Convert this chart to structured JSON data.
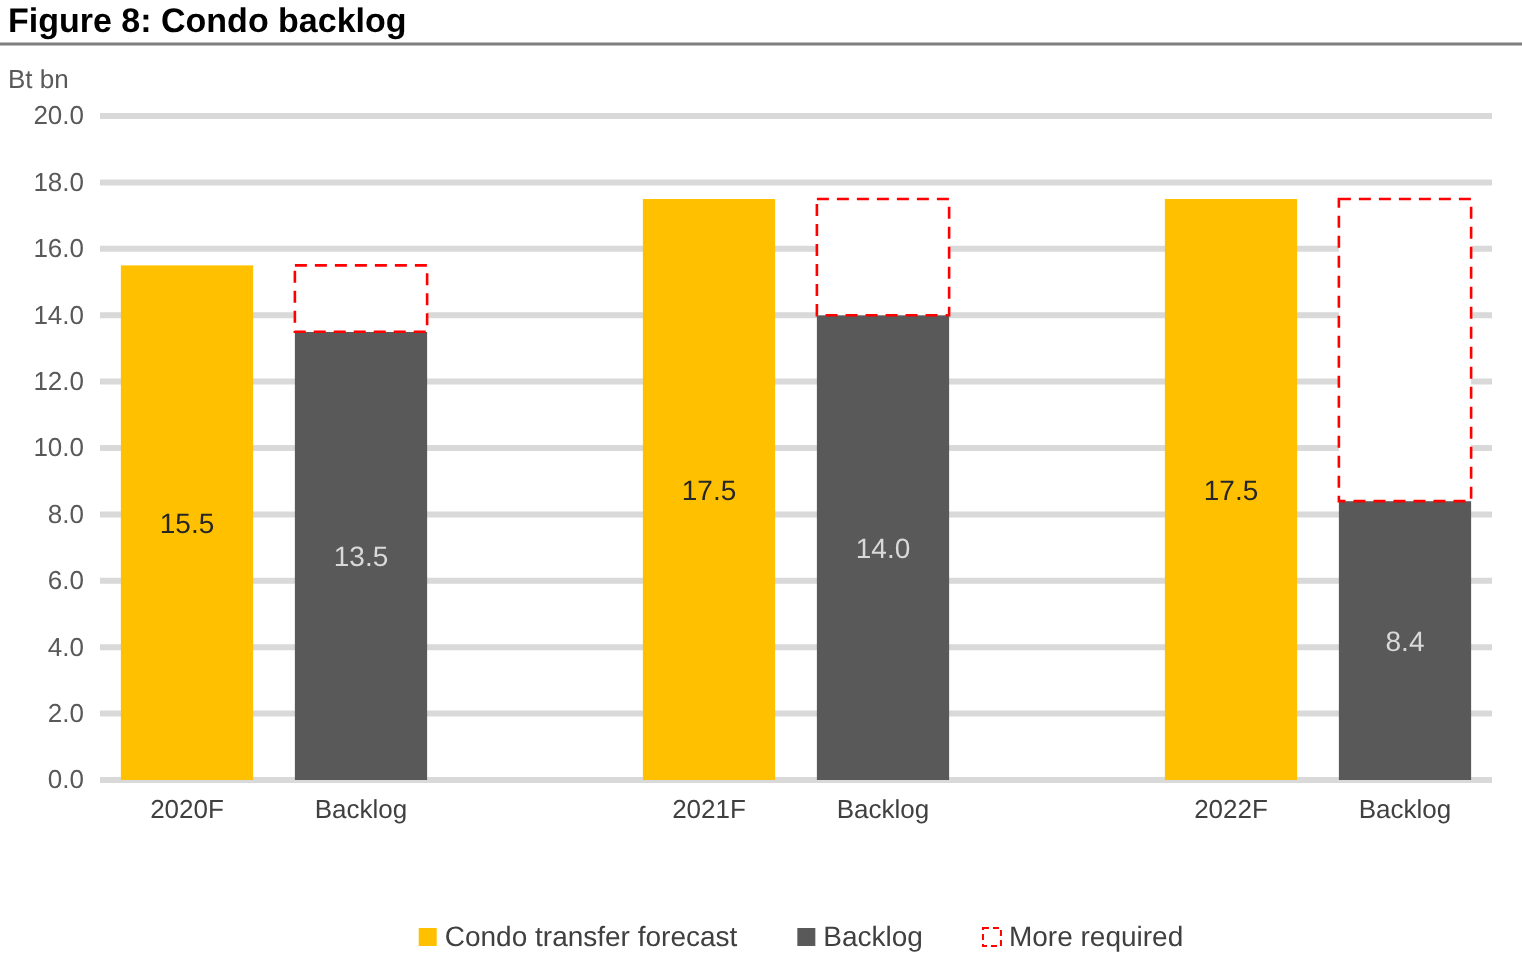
{
  "chart_data": {
    "type": "bar",
    "title": "Figure 8: Condo backlog",
    "ylabel": "Bt bn",
    "stacked": true,
    "grid": "y",
    "legend": "bottom",
    "categories": [
      "2020F",
      "Backlog",
      null,
      "2021F",
      "Backlog",
      null,
      "2022F",
      "Backlog"
    ],
    "ylim": [
      0,
      20
    ],
    "yticks": [
      {
        "value": 0,
        "label": "0.0"
      },
      {
        "value": 2,
        "label": "2.0"
      },
      {
        "value": 4,
        "label": "4.0"
      },
      {
        "value": 6,
        "label": "6.0"
      },
      {
        "value": 8,
        "label": "8.0"
      },
      {
        "value": 10,
        "label": "10.0"
      },
      {
        "value": 12,
        "label": "12.0"
      },
      {
        "value": 14,
        "label": "14.0"
      },
      {
        "value": 16,
        "label": "16.0"
      },
      {
        "value": 18,
        "label": "18.0"
      },
      {
        "value": 20,
        "label": "20.0"
      }
    ],
    "series": [
      {
        "name": "Condo transfer forecast",
        "color": "#ffc000",
        "values": [
          15.5,
          null,
          null,
          17.5,
          null,
          null,
          17.5,
          null
        ],
        "value_labels": [
          "15.5",
          null,
          null,
          "17.5",
          null,
          null,
          "17.5",
          null
        ]
      },
      {
        "name": "Backlog",
        "color": "#595959",
        "values": [
          null,
          13.5,
          null,
          null,
          14.0,
          null,
          null,
          8.4
        ],
        "value_labels": [
          null,
          "13.5",
          null,
          null,
          "14.0",
          null,
          null,
          "8.4"
        ]
      },
      {
        "name": "More required",
        "color": "#ff0000",
        "line_style": "dashed",
        "values": [
          null,
          2.0,
          null,
          null,
          3.5,
          null,
          null,
          9.1
        ]
      }
    ]
  }
}
